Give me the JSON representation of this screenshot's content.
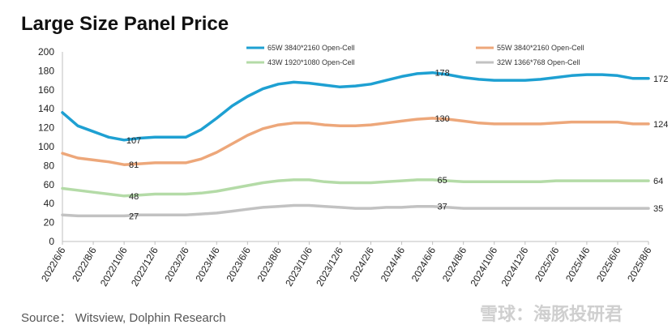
{
  "title": "Large Size Panel Price",
  "source": "Source：  Witsview, Dolphin Research",
  "watermark": "雪球：海豚投研君",
  "chart_data": {
    "type": "line",
    "title": "Large Size Panel Price",
    "ylim": [
      0,
      200
    ],
    "yticks": [
      0,
      20,
      40,
      60,
      80,
      100,
      120,
      140,
      160,
      180,
      200
    ],
    "xlim": [
      "2022-06",
      "2025-08"
    ],
    "xticks": [
      "2022/6/6",
      "2022/8/6",
      "2022/10/6",
      "2022/12/6",
      "2023/2/6",
      "2023/4/6",
      "2023/6/6",
      "2023/8/6",
      "2023/10/6",
      "2023/12/6",
      "2024/2/6",
      "2024/4/6",
      "2024/6/6",
      "2024/8/6",
      "2024/10/6",
      "2024/12/6",
      "2025/2/6",
      "2025/4/6",
      "2025/6/6",
      "2025/8/6"
    ],
    "x": [
      "2022-06",
      "2022-07",
      "2022-08",
      "2022-09",
      "2022-10",
      "2022-11",
      "2022-12",
      "2023-01",
      "2023-02",
      "2023-03",
      "2023-04",
      "2023-05",
      "2023-06",
      "2023-07",
      "2023-08",
      "2023-09",
      "2023-10",
      "2023-11",
      "2023-12",
      "2024-01",
      "2024-02",
      "2024-03",
      "2024-04",
      "2024-05",
      "2024-06",
      "2024-07",
      "2024-08",
      "2024-09",
      "2024-10",
      "2024-11",
      "2024-12",
      "2025-01",
      "2025-02",
      "2025-03",
      "2025-04",
      "2025-05",
      "2025-06",
      "2025-07",
      "2025-08"
    ],
    "series": [
      {
        "name": "65W 3840*2160 Open-Cell",
        "color": "#1ea0d2",
        "values": [
          136,
          122,
          116,
          110,
          107,
          109,
          110,
          110,
          110,
          118,
          130,
          143,
          153,
          161,
          166,
          168,
          167,
          165,
          163,
          164,
          166,
          170,
          174,
          177,
          178,
          176,
          173,
          171,
          170,
          170,
          170,
          171,
          173,
          175,
          176,
          176,
          175,
          172,
          172
        ]
      },
      {
        "name": "55W 3840*2160 Open-Cell",
        "color": "#eda77a",
        "values": [
          93,
          88,
          86,
          84,
          81,
          82,
          83,
          83,
          83,
          87,
          94,
          103,
          112,
          119,
          123,
          125,
          125,
          123,
          122,
          122,
          123,
          125,
          127,
          129,
          130,
          129,
          127,
          125,
          124,
          124,
          124,
          124,
          125,
          126,
          126,
          126,
          126,
          124,
          124
        ]
      },
      {
        "name": "43W 1920*1080 Open-Cell",
        "color": "#b4dba7",
        "values": [
          56,
          54,
          52,
          50,
          48,
          49,
          50,
          50,
          50,
          51,
          53,
          56,
          59,
          62,
          64,
          65,
          65,
          63,
          62,
          62,
          62,
          63,
          64,
          65,
          65,
          64,
          63,
          63,
          63,
          63,
          63,
          63,
          64,
          64,
          64,
          64,
          64,
          64,
          64
        ]
      },
      {
        "name": "32W 1366*768 Open-Cell",
        "color": "#c2c2c2",
        "values": [
          28,
          27,
          27,
          27,
          27,
          28,
          28,
          28,
          28,
          29,
          30,
          32,
          34,
          36,
          37,
          38,
          38,
          37,
          36,
          35,
          35,
          36,
          36,
          37,
          37,
          36,
          35,
          35,
          35,
          35,
          35,
          35,
          35,
          35,
          35,
          35,
          35,
          35,
          35
        ]
      }
    ],
    "data_labels": [
      {
        "series": 0,
        "index": 4,
        "text": "107"
      },
      {
        "series": 0,
        "index": 24,
        "text": "178"
      },
      {
        "series": 0,
        "index": 38,
        "text": "172"
      },
      {
        "series": 1,
        "index": 4,
        "text": "81"
      },
      {
        "series": 1,
        "index": 24,
        "text": "130"
      },
      {
        "series": 1,
        "index": 38,
        "text": "124"
      },
      {
        "series": 2,
        "index": 4,
        "text": "48"
      },
      {
        "series": 2,
        "index": 24,
        "text": "65"
      },
      {
        "series": 2,
        "index": 38,
        "text": "64"
      },
      {
        "series": 3,
        "index": 4,
        "text": "27"
      },
      {
        "series": 3,
        "index": 24,
        "text": "37"
      },
      {
        "series": 3,
        "index": 38,
        "text": "35"
      }
    ],
    "legend_position": "top",
    "grid": false
  }
}
